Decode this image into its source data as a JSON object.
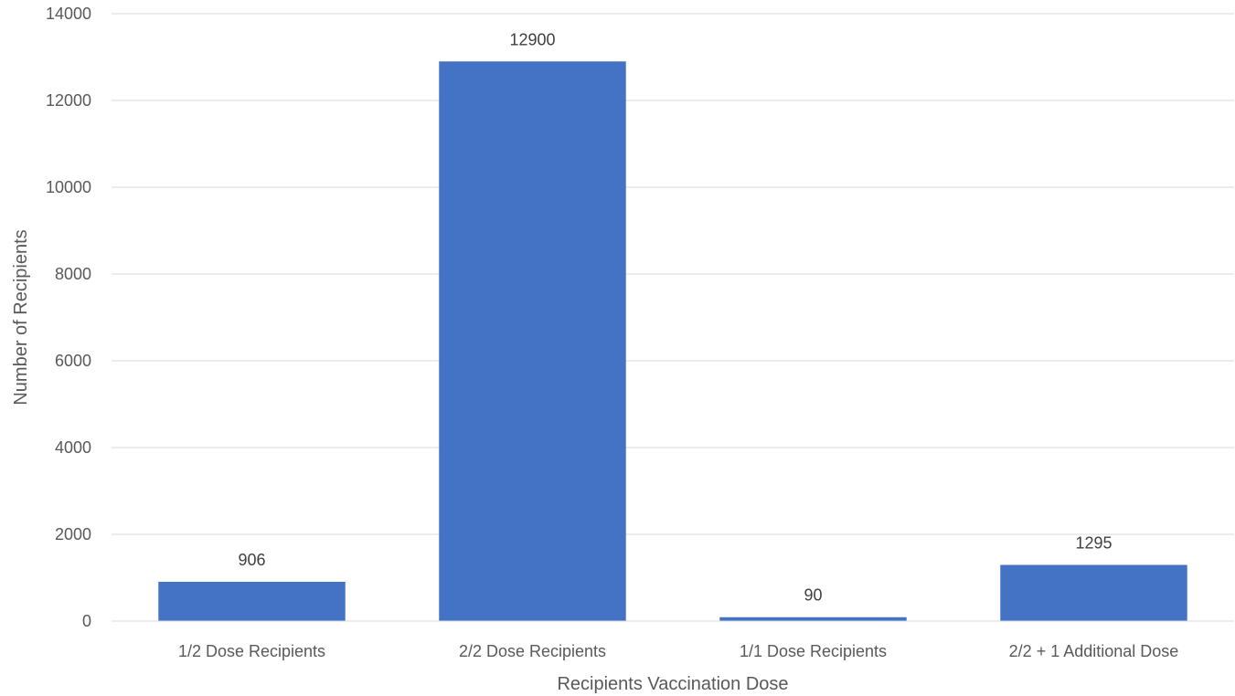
{
  "chart_data": {
    "type": "bar",
    "title": "",
    "xlabel": "Recipients Vaccination Dose",
    "ylabel": "Number of Recipients",
    "categories": [
      "1/2 Dose Recipients",
      "2/2 Dose Recipients",
      "1/1 Dose Recipients",
      "2/2 + 1 Additional Dose"
    ],
    "values": [
      906,
      12900,
      90,
      1295
    ],
    "data_labels": [
      "906",
      "12900",
      "90",
      "1295"
    ],
    "ylim": [
      0,
      14000
    ],
    "yticks": [
      0,
      2000,
      4000,
      6000,
      8000,
      10000,
      12000,
      14000
    ],
    "ytick_labels": [
      "0",
      "2000",
      "4000",
      "6000",
      "8000",
      "10000",
      "12000",
      "14000"
    ],
    "grid": true,
    "legend": "none",
    "bar_color": "#4472c4"
  }
}
